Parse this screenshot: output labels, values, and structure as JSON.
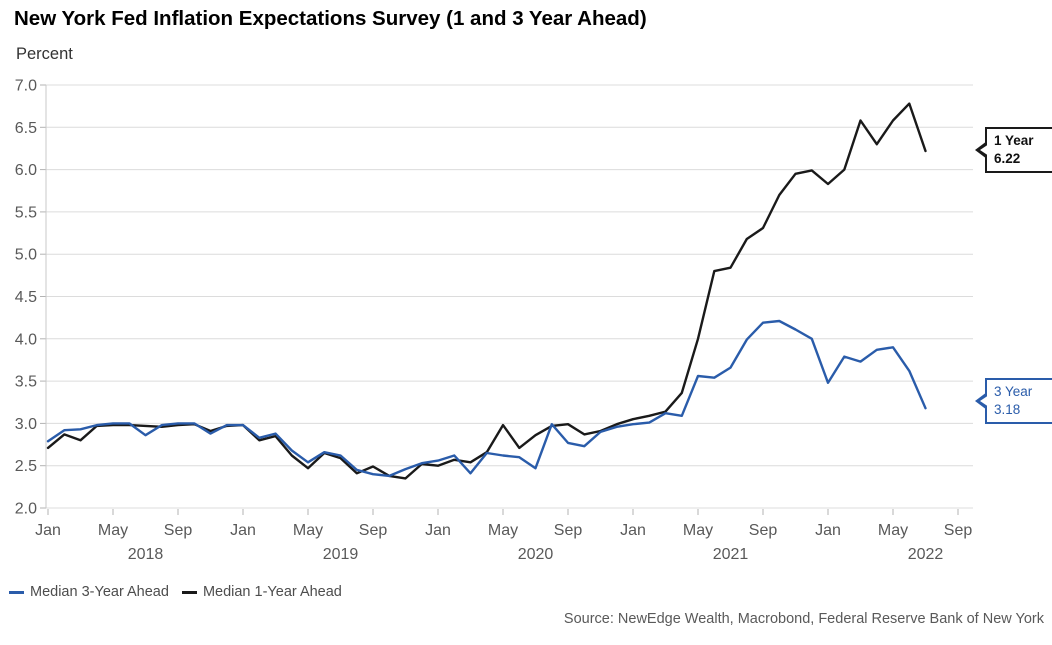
{
  "page": {
    "title": "New York Fed Inflation Expectations Survey (1 and 3 Year Ahead)"
  },
  "chart_data": {
    "type": "line",
    "title": "New York Fed Inflation Expectations Survey (1 and 3 Year Ahead)",
    "ylabel": "Percent",
    "xlabel": "",
    "ylim": [
      2.0,
      7.0
    ],
    "grid": true,
    "legend_position": "bottom-left",
    "frequency": "monthly",
    "x_start": "2018-01",
    "x_end": "2022-07",
    "x": [
      "2018-01",
      "2018-02",
      "2018-03",
      "2018-04",
      "2018-05",
      "2018-06",
      "2018-07",
      "2018-08",
      "2018-09",
      "2018-10",
      "2018-11",
      "2018-12",
      "2019-01",
      "2019-02",
      "2019-03",
      "2019-04",
      "2019-05",
      "2019-06",
      "2019-07",
      "2019-08",
      "2019-09",
      "2019-10",
      "2019-11",
      "2019-12",
      "2020-01",
      "2020-02",
      "2020-03",
      "2020-04",
      "2020-05",
      "2020-06",
      "2020-07",
      "2020-08",
      "2020-09",
      "2020-10",
      "2020-11",
      "2020-12",
      "2021-01",
      "2021-02",
      "2021-03",
      "2021-04",
      "2021-05",
      "2021-06",
      "2021-07",
      "2021-08",
      "2021-09",
      "2021-10",
      "2021-11",
      "2021-12",
      "2022-01",
      "2022-02",
      "2022-03",
      "2022-04",
      "2022-05",
      "2022-06",
      "2022-07"
    ],
    "y_ticks": [
      "7.0",
      "6.5",
      "6.0",
      "5.5",
      "5.0",
      "4.5",
      "4.0",
      "3.5",
      "3.0",
      "2.5",
      "2.0"
    ],
    "x_ticks": [
      {
        "m": 0,
        "label": "Jan"
      },
      {
        "m": 4,
        "label": "May"
      },
      {
        "m": 8,
        "label": "Sep"
      },
      {
        "m": 12,
        "label": "Jan"
      },
      {
        "m": 16,
        "label": "May"
      },
      {
        "m": 20,
        "label": "Sep"
      },
      {
        "m": 24,
        "label": "Jan"
      },
      {
        "m": 28,
        "label": "May"
      },
      {
        "m": 32,
        "label": "Sep"
      },
      {
        "m": 36,
        "label": "Jan"
      },
      {
        "m": 40,
        "label": "May"
      },
      {
        "m": 44,
        "label": "Sep"
      },
      {
        "m": 48,
        "label": "Jan"
      },
      {
        "m": 52,
        "label": "May"
      },
      {
        "m": 56,
        "label": "Sep"
      }
    ],
    "year_labels": [
      {
        "m": 6,
        "label": "2018"
      },
      {
        "m": 18,
        "label": "2019"
      },
      {
        "m": 30,
        "label": "2020"
      },
      {
        "m": 42,
        "label": "2021"
      },
      {
        "m": 54,
        "label": "2022"
      }
    ],
    "series": [
      {
        "name": "Median 1-Year Ahead",
        "color": "#1a1a1a",
        "values": [
          2.71,
          2.87,
          2.8,
          2.97,
          2.98,
          2.98,
          2.97,
          2.96,
          2.98,
          2.99,
          2.91,
          2.97,
          2.98,
          2.8,
          2.85,
          2.62,
          2.47,
          2.65,
          2.59,
          2.41,
          2.49,
          2.38,
          2.35,
          2.52,
          2.5,
          2.57,
          2.54,
          2.66,
          2.98,
          2.71,
          2.86,
          2.97,
          2.99,
          2.87,
          2.91,
          2.99,
          3.05,
          3.09,
          3.14,
          3.36,
          4.0,
          4.8,
          4.84,
          5.18,
          5.31,
          5.7,
          5.95,
          5.99,
          5.83,
          6.0,
          6.58,
          6.3,
          6.58,
          6.78,
          6.22
        ]
      },
      {
        "name": "Median 3-Year Ahead",
        "color": "#2a5caa",
        "values": [
          2.79,
          2.92,
          2.93,
          2.98,
          3.0,
          3.0,
          2.86,
          2.98,
          3.0,
          3.0,
          2.88,
          2.98,
          2.98,
          2.83,
          2.88,
          2.68,
          2.54,
          2.66,
          2.62,
          2.45,
          2.4,
          2.38,
          2.46,
          2.53,
          2.56,
          2.62,
          2.41,
          2.65,
          2.62,
          2.6,
          2.47,
          2.99,
          2.77,
          2.73,
          2.9,
          2.96,
          2.99,
          3.01,
          3.12,
          3.09,
          3.56,
          3.54,
          3.66,
          3.99,
          4.19,
          4.21,
          4.11,
          4.0,
          3.48,
          3.79,
          3.73,
          3.87,
          3.9,
          3.62,
          3.18
        ]
      }
    ]
  },
  "callouts": [
    {
      "line1": "1 Year",
      "line2": "6.22",
      "value": 6.22,
      "color": "#1a1a1a"
    },
    {
      "line1": "3 Year",
      "line2": "3.18",
      "value": 3.18,
      "color": "#2a5caa"
    }
  ],
  "legend": {
    "items": [
      {
        "label": "Median 3-Year Ahead",
        "color": "#2a5caa"
      },
      {
        "label": "Median 1-Year Ahead",
        "color": "#1a1a1a"
      }
    ]
  },
  "source": "Source: NewEdge Wealth, Macrobond, Federal Reserve Bank of New York",
  "colors": {
    "grid": "#dcdcdc",
    "axis": "#c9c9c9",
    "tick": "#b3b3b3",
    "tick_label": "#595959",
    "legend_text": "#4d4d4d"
  }
}
